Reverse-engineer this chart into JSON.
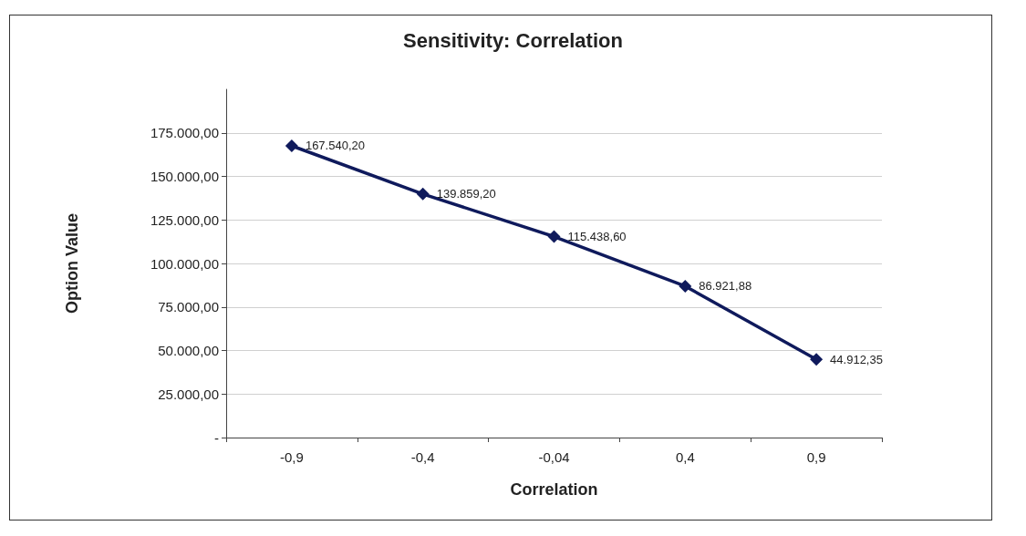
{
  "chart_data": {
    "type": "line",
    "title": "Sensitivity: Correlation",
    "xlabel": "Correlation",
    "ylabel": "Option Value",
    "categories": [
      "-0,9",
      "-0,4",
      "-0,04",
      "0,4",
      "0,9"
    ],
    "series": [
      {
        "color": "#0f1a5c",
        "values": [
          167540.2,
          139859.2,
          115438.6,
          86921.88,
          44912.35
        ],
        "value_labels": [
          "167.540,20",
          "139.859,20",
          "115.438,60",
          "86.921,88",
          "44.912,35"
        ]
      }
    ],
    "ylim": [
      0,
      200000
    ],
    "yticks": [
      {
        "value": 0,
        "label": "-"
      },
      {
        "value": 25000,
        "label": "25.000,00"
      },
      {
        "value": 50000,
        "label": "50.000,00"
      },
      {
        "value": 75000,
        "label": "75.000,00"
      },
      {
        "value": 100000,
        "label": "100.000,00"
      },
      {
        "value": 125000,
        "label": "125.000,00"
      },
      {
        "value": 150000,
        "label": "150.000,00"
      },
      {
        "value": 175000,
        "label": "175.000,00"
      }
    ],
    "grid": "y",
    "marker": "diamond",
    "line_style": "solid"
  }
}
